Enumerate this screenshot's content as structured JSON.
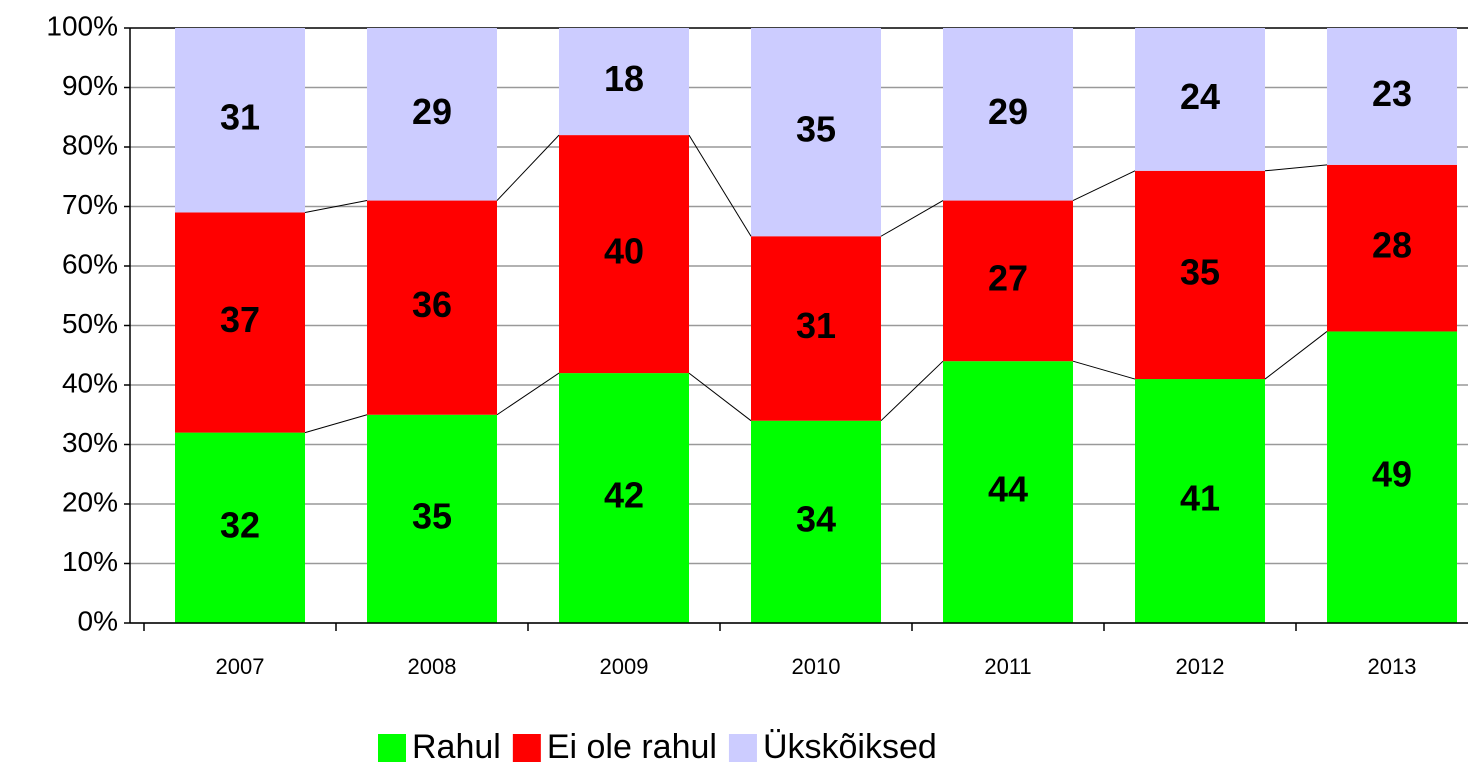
{
  "chart_data": {
    "type": "stacked_bar",
    "categories": [
      "2007",
      "2008",
      "2009",
      "2010",
      "2011",
      "2012",
      "2013"
    ],
    "series": [
      {
        "name": "Rahul",
        "color": "#00ff00",
        "values": [
          32,
          35,
          42,
          34,
          44,
          41,
          49
        ]
      },
      {
        "name": "Ei ole rahul",
        "color": "#ff0000",
        "values": [
          37,
          36,
          40,
          31,
          27,
          35,
          28
        ]
      },
      {
        "name": "Ükskõiksed",
        "color": "#ccccff",
        "values": [
          31,
          29,
          18,
          35,
          29,
          24,
          23
        ]
      }
    ],
    "ylim": [
      0,
      100
    ],
    "yticks": [
      {
        "value": 0,
        "label": "0%"
      },
      {
        "value": 10,
        "label": "10%"
      },
      {
        "value": 20,
        "label": "20%"
      },
      {
        "value": 30,
        "label": "30%"
      },
      {
        "value": 40,
        "label": "40%"
      },
      {
        "value": 50,
        "label": "50%"
      },
      {
        "value": 60,
        "label": "60%"
      },
      {
        "value": 70,
        "label": "70%"
      },
      {
        "value": 80,
        "label": "80%"
      },
      {
        "value": 90,
        "label": "90%"
      },
      {
        "value": 100,
        "label": "100%"
      }
    ],
    "grid": true,
    "legend": "bottom"
  }
}
